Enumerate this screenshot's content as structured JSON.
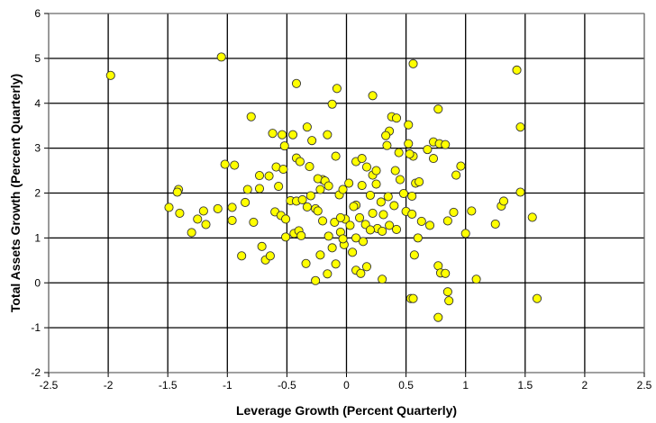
{
  "chart_data": {
    "type": "scatter",
    "title": "",
    "xlabel": "Leverage Growth (Percent Quarterly)",
    "ylabel": "Total Assets Growth (Percent Quarterly)",
    "xlim": [
      -2.5,
      2.5
    ],
    "ylim": [
      -2,
      6
    ],
    "xticks": [
      -2.5,
      -2,
      -1.5,
      -1,
      -0.5,
      0,
      0.5,
      1,
      1.5,
      2,
      2.5
    ],
    "yticks": [
      -2,
      -1,
      0,
      1,
      2,
      3,
      4,
      5,
      6
    ],
    "xtick_labels": [
      "-2.5",
      "-2",
      "-1.5",
      "-1",
      "-0.5",
      "0",
      "0.5",
      "1",
      "1.5",
      "2",
      "2.5"
    ],
    "ytick_labels": [
      "-2",
      "-1",
      "0",
      "1",
      "2",
      "3",
      "4",
      "5",
      "6"
    ],
    "grid": true,
    "legend": "none",
    "marker_color": "#ffff00",
    "marker_edge": "#333333",
    "gridline_color": "#000000",
    "points": [
      [
        -1.98,
        4.62
      ],
      [
        -1.05,
        5.03
      ],
      [
        -0.42,
        4.44
      ],
      [
        -0.08,
        4.33
      ],
      [
        0.56,
        4.88
      ],
      [
        1.43,
        4.74
      ],
      [
        -0.12,
        3.98
      ],
      [
        0.22,
        4.17
      ],
      [
        0.77,
        3.87
      ],
      [
        0.52,
        3.52
      ],
      [
        1.46,
        3.47
      ],
      [
        -0.8,
        3.7
      ],
      [
        -0.54,
        3.3
      ],
      [
        -0.62,
        3.33
      ],
      [
        -0.45,
        3.3
      ],
      [
        -0.33,
        3.47
      ],
      [
        -0.29,
        3.17
      ],
      [
        -0.16,
        3.3
      ],
      [
        0.36,
        3.38
      ],
      [
        0.33,
        3.28
      ],
      [
        0.38,
        3.7
      ],
      [
        0.42,
        3.67
      ],
      [
        0.44,
        2.9
      ],
      [
        0.52,
        3.1
      ],
      [
        0.56,
        2.82
      ],
      [
        0.73,
        3.14
      ],
      [
        0.78,
        3.1
      ],
      [
        0.83,
        3.08
      ],
      [
        0.73,
        2.77
      ],
      [
        0.96,
        2.6
      ],
      [
        0.58,
        2.22
      ],
      [
        0.61,
        2.25
      ],
      [
        0.92,
        2.4
      ],
      [
        -0.52,
        3.05
      ],
      [
        -0.73,
        2.39
      ],
      [
        -0.65,
        2.38
      ],
      [
        -0.59,
        2.58
      ],
      [
        -0.53,
        2.53
      ],
      [
        -0.42,
        2.78
      ],
      [
        -0.39,
        2.7
      ],
      [
        -0.31,
        2.59
      ],
      [
        -0.2,
        2.3
      ],
      [
        -0.09,
        2.82
      ],
      [
        0.08,
        2.7
      ],
      [
        0.13,
        2.77
      ],
      [
        0.17,
        2.58
      ],
      [
        0.22,
        2.4
      ],
      [
        0.25,
        2.5
      ],
      [
        0.34,
        3.06
      ],
      [
        0.41,
        2.5
      ],
      [
        0.45,
        2.3
      ],
      [
        0.53,
        2.87
      ],
      [
        0.68,
        2.97
      ],
      [
        -0.94,
        2.62
      ],
      [
        -1.02,
        2.64
      ],
      [
        -1.41,
        2.08
      ],
      [
        -1.42,
        2.02
      ],
      [
        -1.25,
        1.42
      ],
      [
        -1.08,
        1.65
      ],
      [
        -0.96,
        1.68
      ],
      [
        -0.85,
        1.79
      ],
      [
        -0.83,
        2.08
      ],
      [
        -0.73,
        2.1
      ],
      [
        -0.57,
        2.15
      ],
      [
        -0.47,
        1.83
      ],
      [
        -0.42,
        1.82
      ],
      [
        -0.37,
        1.85
      ],
      [
        -0.3,
        1.94
      ],
      [
        -0.24,
        2.32
      ],
      [
        -0.22,
        2.08
      ],
      [
        -0.18,
        2.27
      ],
      [
        -0.15,
        2.16
      ],
      [
        -0.06,
        1.96
      ],
      [
        -0.03,
        2.08
      ],
      [
        0.02,
        2.22
      ],
      [
        0.08,
        1.73
      ],
      [
        0.13,
        2.17
      ],
      [
        0.2,
        1.95
      ],
      [
        0.25,
        2.2
      ],
      [
        0.29,
        1.8
      ],
      [
        0.35,
        1.92
      ],
      [
        0.4,
        1.72
      ],
      [
        0.48,
        1.99
      ],
      [
        0.55,
        1.93
      ],
      [
        0.63,
        1.37
      ],
      [
        0.7,
        1.28
      ],
      [
        0.85,
        1.38
      ],
      [
        0.9,
        1.57
      ],
      [
        1.0,
        1.1
      ],
      [
        1.05,
        1.6
      ],
      [
        1.25,
        1.31
      ],
      [
        1.3,
        1.71
      ],
      [
        1.32,
        1.82
      ],
      [
        1.46,
        2.02
      ],
      [
        1.56,
        1.46
      ],
      [
        -1.49,
        1.68
      ],
      [
        -1.4,
        1.55
      ],
      [
        -1.2,
        1.6
      ],
      [
        -1.18,
        1.3
      ],
      [
        -0.96,
        1.39
      ],
      [
        -0.88,
        0.6
      ],
      [
        -0.71,
        0.81
      ],
      [
        -0.68,
        0.51
      ],
      [
        -0.64,
        0.6
      ],
      [
        -0.6,
        1.58
      ],
      [
        -0.55,
        1.5
      ],
      [
        -0.51,
        1.42
      ],
      [
        -0.51,
        1.02
      ],
      [
        -0.44,
        1.1
      ],
      [
        -0.4,
        1.16
      ],
      [
        -0.38,
        1.05
      ],
      [
        -0.33,
        1.69
      ],
      [
        -0.26,
        1.65
      ],
      [
        -0.24,
        1.6
      ],
      [
        -0.2,
        1.38
      ],
      [
        -0.15,
        1.04
      ],
      [
        -0.12,
        0.78
      ],
      [
        -0.1,
        1.35
      ],
      [
        -0.05,
        1.13
      ],
      [
        -0.01,
        1.42
      ],
      [
        0.03,
        1.28
      ],
      [
        0.08,
        1.0
      ],
      [
        0.11,
        1.45
      ],
      [
        0.16,
        1.3
      ],
      [
        0.22,
        1.55
      ],
      [
        0.26,
        1.21
      ],
      [
        0.31,
        1.52
      ],
      [
        0.36,
        1.28
      ],
      [
        0.42,
        1.19
      ],
      [
        0.5,
        1.59
      ],
      [
        0.55,
        1.53
      ],
      [
        -0.34,
        0.43
      ],
      [
        -0.26,
        0.05
      ],
      [
        -0.22,
        0.62
      ],
      [
        -0.16,
        0.2
      ],
      [
        -0.09,
        0.42
      ],
      [
        -0.02,
        0.85
      ],
      [
        0.05,
        0.68
      ],
      [
        0.08,
        0.28
      ],
      [
        0.12,
        0.21
      ],
      [
        0.17,
        0.36
      ],
      [
        0.3,
        0.08
      ],
      [
        0.54,
        -0.35
      ],
      [
        0.57,
        0.62
      ],
      [
        0.6,
        1.0
      ],
      [
        0.77,
        0.38
      ],
      [
        0.79,
        0.22
      ],
      [
        0.83,
        0.21
      ],
      [
        0.85,
        -0.2
      ],
      [
        0.86,
        -0.4
      ],
      [
        0.77,
        -0.77
      ],
      [
        1.09,
        0.08
      ],
      [
        1.6,
        -0.35
      ],
      [
        0.3,
        1.15
      ],
      [
        0.06,
        1.7
      ],
      [
        -0.05,
        1.45
      ],
      [
        0.2,
        1.18
      ],
      [
        -0.78,
        1.35
      ],
      [
        -0.03,
        0.98
      ],
      [
        0.14,
        0.92
      ],
      [
        0.56,
        -0.35
      ],
      [
        -1.3,
        1.12
      ]
    ]
  }
}
